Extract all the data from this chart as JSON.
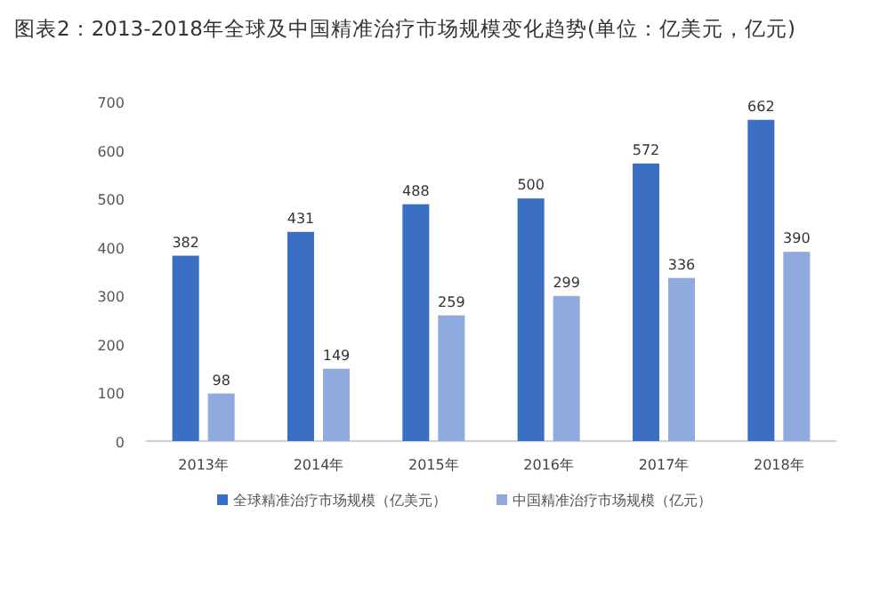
{
  "chart_data": {
    "type": "bar",
    "title": "图表2：2013-2018年全球及中国精准治疗市场规模变化趋势(单位：亿美元，亿元)",
    "categories": [
      "2013年",
      "2014年",
      "2015年",
      "2016年",
      "2017年",
      "2018年"
    ],
    "series": [
      {
        "name": "全球精准治疗市场规模（亿美元）",
        "color": "#3a6fc4",
        "values": [
          382,
          431,
          488,
          500,
          572,
          662
        ]
      },
      {
        "name": "中国精准治疗市场规模（亿元）",
        "color": "#8eaadf",
        "values": [
          98,
          149,
          259,
          299,
          336,
          390
        ]
      }
    ],
    "ylim": [
      0,
      700
    ],
    "yticks": [
      0,
      100,
      200,
      300,
      400,
      500,
      600,
      700
    ],
    "data_labels": true,
    "legend": "bottom",
    "grid": false
  }
}
